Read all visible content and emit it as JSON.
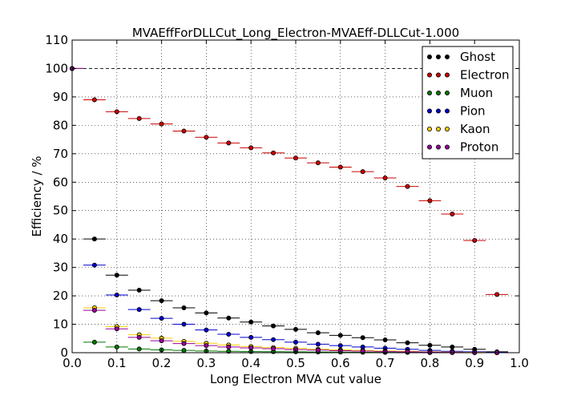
{
  "chart_data": {
    "type": "scatter",
    "title": "MVAEffForDLLCut_Long_Electron-MVAEff-DLLCut-1.000",
    "xlabel": "Long Electron MVA cut value",
    "ylabel": "Efficiency / %",
    "xlim": [
      0.0,
      1.0
    ],
    "ylim": [
      0,
      110
    ],
    "xticks": [
      "0.0",
      "0.1",
      "0.2",
      "0.3",
      "0.4",
      "0.5",
      "0.6",
      "0.7",
      "0.8",
      "0.9",
      "1.0"
    ],
    "yticks": [
      "0",
      "10",
      "20",
      "30",
      "40",
      "50",
      "60",
      "70",
      "80",
      "90",
      "100",
      "110"
    ],
    "grid": true,
    "legend_position": "top-right",
    "reference_line": 100,
    "x": [
      0.0,
      0.05,
      0.1,
      0.15,
      0.2,
      0.25,
      0.3,
      0.35,
      0.4,
      0.45,
      0.5,
      0.55,
      0.6,
      0.65,
      0.7,
      0.75,
      0.8,
      0.85,
      0.9,
      0.95
    ],
    "series": [
      {
        "name": "Ghost",
        "color": "#000000",
        "values": [
          100,
          40,
          27.3,
          22,
          18.3,
          15.8,
          14,
          12.2,
          10.8,
          9.4,
          8.2,
          7,
          6.1,
          5.3,
          4.5,
          3.5,
          2.6,
          2,
          1.2,
          0.3
        ]
      },
      {
        "name": "Electron",
        "color": "#cc0000",
        "values": [
          100,
          89,
          84.8,
          82.4,
          80.5,
          78,
          75.8,
          73.8,
          72.1,
          70.3,
          68.5,
          66.8,
          65.3,
          63.7,
          61.5,
          58.5,
          53.5,
          48.8,
          39.5,
          20.5
        ]
      },
      {
        "name": "Muon",
        "color": "#007700",
        "values": [
          100,
          3.7,
          2,
          1.3,
          1,
          0.8,
          0.6,
          0.5,
          0.4,
          0.35,
          0.3,
          0.25,
          0.2,
          0.15,
          0.1,
          0.1,
          0.05,
          0.05,
          0,
          0
        ]
      },
      {
        "name": "Pion",
        "color": "#0000cc",
        "values": [
          100,
          30.8,
          20.3,
          15.2,
          12.1,
          10,
          8,
          6.5,
          5.4,
          4.6,
          3.7,
          3,
          2.5,
          2,
          1.6,
          1.2,
          0.8,
          0.5,
          0.3,
          0.1
        ]
      },
      {
        "name": "Kaon",
        "color": "#ffcc00",
        "values": [
          100,
          15.8,
          9.2,
          6.3,
          5.1,
          4,
          3.3,
          2.7,
          2.2,
          1.8,
          1.5,
          1.2,
          1,
          0.8,
          0.6,
          0.5,
          0.3,
          0.2,
          0.1,
          0
        ]
      },
      {
        "name": "Proton",
        "color": "#990099",
        "values": [
          100,
          14.9,
          8.4,
          5.4,
          4.2,
          3.2,
          2.5,
          2,
          1.7,
          1.4,
          1.1,
          0.9,
          0.7,
          0.55,
          0.4,
          0.3,
          0.2,
          0.1,
          0.05,
          0
        ]
      }
    ]
  }
}
